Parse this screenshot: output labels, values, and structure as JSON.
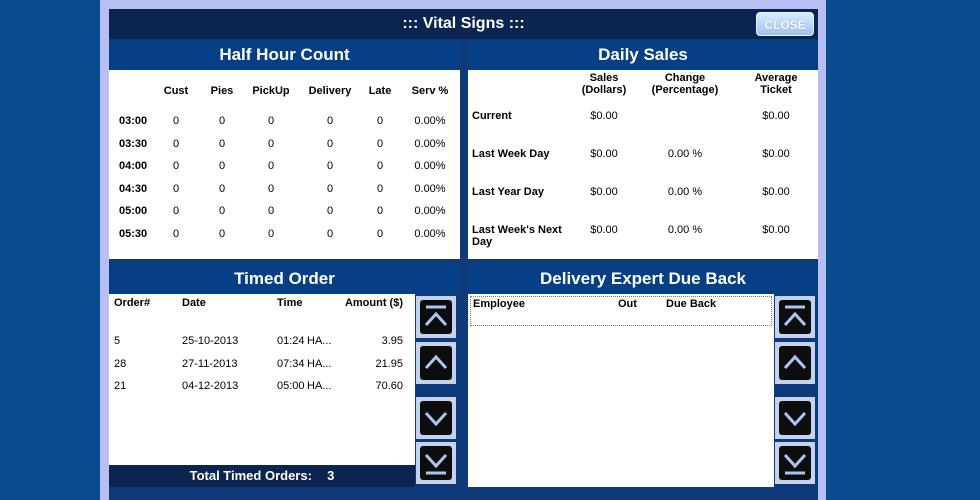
{
  "window": {
    "title": "::: Vital Signs :::",
    "close_label": "CLOSE"
  },
  "half_hour": {
    "title": "Half Hour Count",
    "headers": [
      "Cust",
      "Pies",
      "PickUp",
      "Delivery",
      "Late",
      "Serv %"
    ],
    "rows": [
      {
        "time": "03:00",
        "values": [
          "0",
          "0",
          "0",
          "0",
          "0",
          "0.00%"
        ]
      },
      {
        "time": "03:30",
        "values": [
          "0",
          "0",
          "0",
          "0",
          "0",
          "0.00%"
        ]
      },
      {
        "time": "04:00",
        "values": [
          "0",
          "0",
          "0",
          "0",
          "0",
          "0.00%"
        ]
      },
      {
        "time": "04:30",
        "values": [
          "0",
          "0",
          "0",
          "0",
          "0",
          "0.00%"
        ]
      },
      {
        "time": "05:00",
        "values": [
          "0",
          "0",
          "0",
          "0",
          "0",
          "0.00%"
        ]
      },
      {
        "time": "05:30",
        "values": [
          "0",
          "0",
          "0",
          "0",
          "0",
          "0.00%"
        ]
      }
    ]
  },
  "daily_sales": {
    "title": "Daily Sales",
    "headers": {
      "sales": [
        "Sales",
        "(Dollars)"
      ],
      "change": [
        "Change",
        "(Percentage)"
      ],
      "avg": [
        "Average",
        "Ticket"
      ]
    },
    "rows": [
      {
        "label": [
          "Current"
        ],
        "sales": "$0.00",
        "change": "",
        "avg": "$0.00"
      },
      {
        "label": [
          "Last Week Day"
        ],
        "sales": "$0.00",
        "change": "0.00 %",
        "avg": "$0.00"
      },
      {
        "label": [
          "Last Year Day"
        ],
        "sales": "$0.00",
        "change": "0.00 %",
        "avg": "$0.00"
      },
      {
        "label": [
          "Last Week's Next",
          "Day"
        ],
        "sales": "$0.00",
        "change": "0.00 %",
        "avg": "$0.00"
      }
    ]
  },
  "timed_order": {
    "title": "Timed Order",
    "headers": {
      "order": "Order#",
      "date": "Date",
      "time": "Time",
      "amount": "Amount ($)"
    },
    "rows": [
      {
        "order": "5",
        "date": "25-10-2013",
        "time": "01:24",
        "tag": "HA...",
        "amount": "3.95"
      },
      {
        "order": "28",
        "date": "27-11-2013",
        "time": "07:34",
        "tag": "HA...",
        "amount": "21.95"
      },
      {
        "order": "21",
        "date": "04-12-2013",
        "time": "05:00",
        "tag": "HA...",
        "amount": "70.60"
      }
    ],
    "footer_label": "Total Timed Orders:",
    "footer_count": "3"
  },
  "delivery_expert": {
    "title": "Delivery Expert Due Back",
    "headers": {
      "employee": "Employee",
      "out": "Out",
      "due_back": "Due Back"
    }
  },
  "icons": {
    "scroll_top": "scroll-top-icon",
    "scroll_up": "scroll-up-icon",
    "scroll_down": "scroll-down-icon",
    "scroll_bottom": "scroll-bottom-icon"
  }
}
